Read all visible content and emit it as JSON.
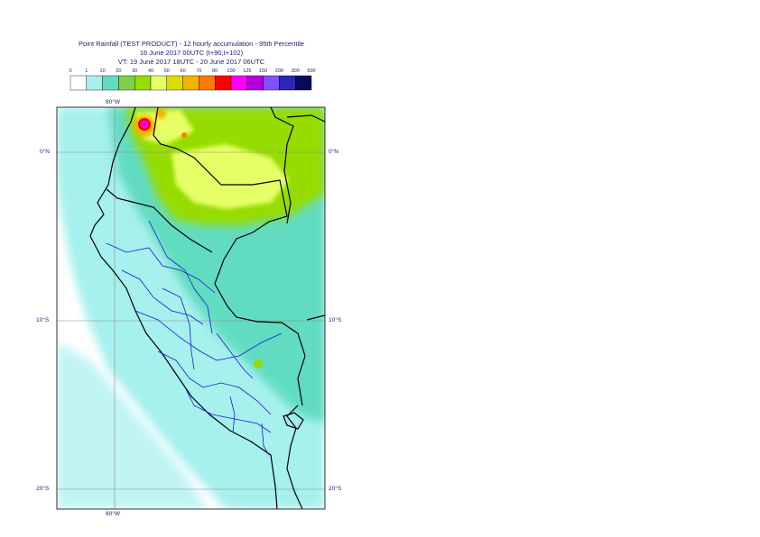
{
  "title": {
    "line1": "Point Rainfall (TEST PRODUCT) - 12 hourly accumulation - 95th Percentile",
    "line2": "16 June 2017 00UTC (t+90,t+102)",
    "line3": "VT: 19 June 2017 18UTC - 20 June 2017 06UTC"
  },
  "legend": {
    "ticks": [
      "0",
      "1",
      "10",
      "20",
      "30",
      "40",
      "50",
      "60",
      "70",
      "80",
      "100",
      "125",
      "150",
      "200",
      "300",
      "500"
    ],
    "colors": [
      "#ffffff",
      "#a6f0ee",
      "#62dcc0",
      "#7ed24a",
      "#96dc00",
      "#e6ff66",
      "#dcdc00",
      "#f0b400",
      "#ff7a00",
      "#ff0000",
      "#ff00ff",
      "#b400dc",
      "#8250ff",
      "#2828b4",
      "#0a0a5a"
    ]
  },
  "map": {
    "lat_labels_left": [
      "0°N",
      "10°S",
      "20°S"
    ],
    "lat_labels_right": [
      "0°N",
      "10°S",
      "20°S"
    ],
    "lon_label_top": "80°W",
    "lon_label_bottom": "80°W",
    "colors": {
      "ocean": "#ffffff",
      "light": "#a6f0ee",
      "mid": "#62dcc0",
      "green": "#96dc00",
      "yellowgreen": "#e6ff66",
      "orange": "#f0b400",
      "red": "#ff0000",
      "magenta": "#ff00ff",
      "coast": "#000000",
      "regions": "#1a1ad0",
      "grid": "#7a7a7a"
    }
  }
}
